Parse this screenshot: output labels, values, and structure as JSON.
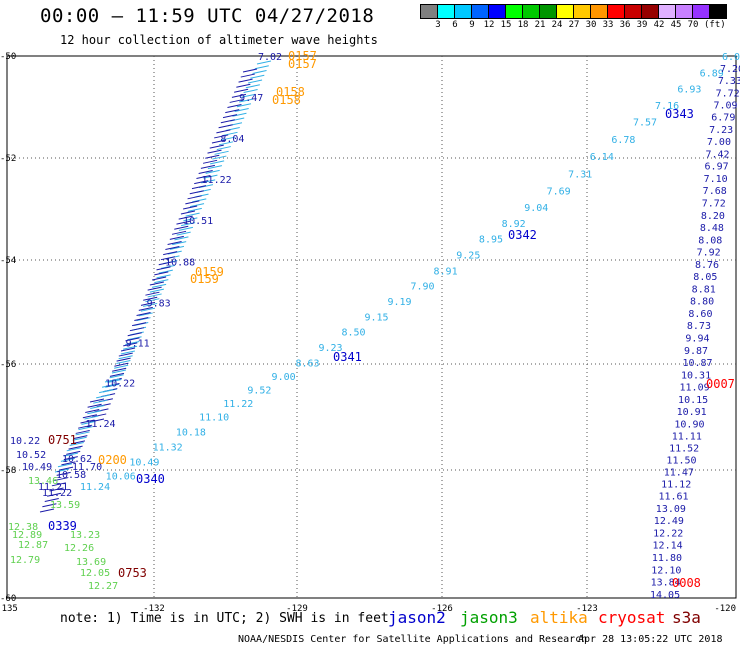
{
  "header": {
    "title": "00:00 – 11:59 UTC 04/27/2018",
    "subtitle": "12 hour collection of altimeter wave heights"
  },
  "legend": {
    "colors": [
      "#7f7f7f",
      "#00ffff",
      "#00c8ff",
      "#0064ff",
      "#0000ff",
      "#00ff00",
      "#00c800",
      "#009600",
      "#ffff00",
      "#ffc800",
      "#ff9600",
      "#ff0000",
      "#c80000",
      "#960000",
      "#e0b0ff",
      "#c880ff",
      "#9632ff",
      "#000000"
    ],
    "ticks": [
      "3",
      "6",
      "9",
      "12",
      "15",
      "18",
      "21",
      "24",
      "27",
      "30",
      "33",
      "36",
      "39",
      "42",
      "45",
      "70"
    ],
    "unit": "(ft)"
  },
  "axes": {
    "lat_labels": [
      "-50",
      "-52",
      "-54",
      "-56",
      "-58",
      "-60"
    ],
    "lon_labels": [
      "-135",
      "-132",
      "-129",
      "-126",
      "-123",
      "-120"
    ]
  },
  "passes": [
    {
      "time": "0157",
      "mission": "altika",
      "labels": [
        "0157",
        "0157"
      ]
    },
    {
      "time": "0158",
      "mission": "altika",
      "labels": [
        "0158",
        "0158"
      ]
    },
    {
      "time": "0159",
      "mission": "altika",
      "labels": [
        "0159",
        "0159"
      ]
    },
    {
      "time": "0200",
      "mission": "altika",
      "labels": [
        "0200"
      ]
    },
    {
      "time": "0339",
      "mission": "jason2",
      "labels": [
        "0339"
      ]
    },
    {
      "time": "0340",
      "mission": "jason2",
      "labels": [
        "0340"
      ]
    },
    {
      "time": "0341",
      "mission": "jason2",
      "labels": [
        "0341"
      ]
    },
    {
      "time": "0342",
      "mission": "jason2",
      "labels": [
        "0342"
      ]
    },
    {
      "time": "0343",
      "mission": "jason2",
      "labels": [
        "0343"
      ]
    },
    {
      "time": "0751",
      "mission": "s3a",
      "labels": [
        "0751"
      ]
    },
    {
      "time": "0753",
      "mission": "s3a",
      "labels": [
        "0753"
      ]
    },
    {
      "time": "0007",
      "mission": "s3a",
      "labels": [
        "0007"
      ]
    },
    {
      "time": "0008",
      "mission": "s3a",
      "labels": [
        "0008"
      ]
    }
  ],
  "steep_track_values": [
    "7.02",
    "9.47",
    "8.04",
    "11.22",
    "10.51",
    "10.88",
    "9.83",
    "9.11",
    "10.22",
    "11.24",
    "11.70"
  ],
  "diag_track_values": [
    "6.02",
    "6.89",
    "6.93",
    "7.16",
    "7.57",
    "6.78",
    "6.14",
    "7.31",
    "7.69",
    "9.04",
    "8.92",
    "8.95",
    "9.25",
    "8.91",
    "7.90",
    "9.19",
    "9.15",
    "8.50",
    "9.23",
    "8.63",
    "9.00",
    "9.52",
    "11.22",
    "11.10",
    "10.18",
    "11.32",
    "10.49",
    "10.06",
    "11.24"
  ],
  "east_track_values": [
    "7.20",
    "7.33",
    "7.72",
    "7.09",
    "6.79",
    "7.23",
    "7.00",
    "7.42",
    "6.97",
    "7.10",
    "7.68",
    "7.72",
    "8.20",
    "8.48",
    "8.08",
    "7.92",
    "8.76",
    "8.05",
    "8.81",
    "8.80",
    "8.60",
    "8.73",
    "9.94",
    "9.87",
    "10.87",
    "10.31",
    "11.09",
    "10.15",
    "10.91",
    "10.90",
    "11.11",
    "11.52",
    "11.50",
    "11.47",
    "11.12",
    "11.61",
    "13.09",
    "12.49",
    "12.22",
    "12.14",
    "11.80",
    "12.10",
    "13.84",
    "14.05"
  ],
  "west_track_values": [
    "10.22",
    "10.52",
    "10.62",
    "10.49",
    "10.58",
    "11.21",
    "11.22",
    "12.38",
    "12.89",
    "12.87",
    "12.79",
    "13.23",
    "12.26",
    "13.69",
    "12.05",
    "12.27",
    "13.59",
    "13.46"
  ],
  "footer": {
    "note": "note: 1) Time is in UTC; 2) SWH is in feet",
    "missions": [
      {
        "name": "jason2",
        "color": "#0000cc"
      },
      {
        "name": "jason3",
        "color": "#00a000"
      },
      {
        "name": "altika",
        "color": "#ff9900"
      },
      {
        "name": "cryosat",
        "color": "#ff0000"
      },
      {
        "name": "s3a",
        "color": "#800000"
      }
    ],
    "credit": "NOAA/NESDIS Center for Satellite Applications and Research",
    "stamp": "Apr 28 13:05:22 UTC 2018"
  }
}
